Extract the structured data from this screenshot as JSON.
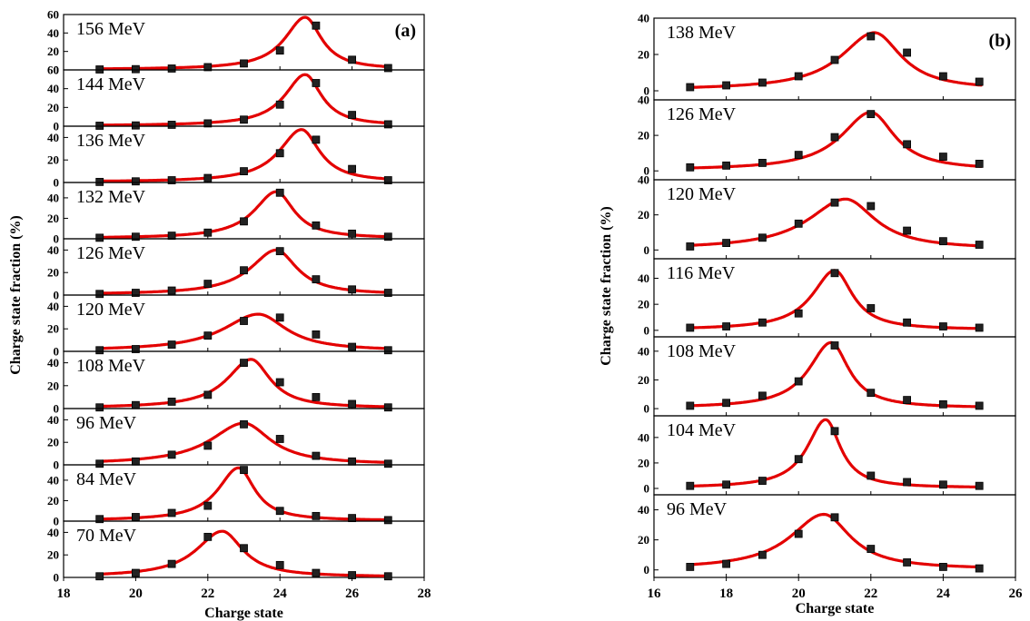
{
  "figure": {
    "panels": [
      {
        "id": "a",
        "tag": "(a)",
        "xlabel": "Charge state",
        "ylabel": "Charge state fraction (%)"
      },
      {
        "id": "b",
        "tag": "(b)",
        "xlabel": "Charge state",
        "ylabel": "Charge state fraction (%)"
      }
    ]
  },
  "colors": {
    "curve": "#e30000",
    "marker": "#222222",
    "axes": "#000000"
  },
  "chart_data": [
    {
      "type": "scatter",
      "panel": "(a)",
      "xlabel": "Charge state",
      "ylabel": "Charge state fraction (%)",
      "xlim": [
        18,
        28
      ],
      "x_ticks": [
        18,
        20,
        22,
        24,
        26,
        28
      ],
      "x": [
        19,
        20,
        21,
        22,
        23,
        24,
        25,
        26,
        27
      ],
      "fit": "red fitted curve per subplot",
      "subplots": [
        {
          "label": "156 MeV",
          "ylim": [
            0,
            60
          ],
          "yticks": [
            0,
            20,
            40,
            60
          ],
          "values": [
            0.5,
            0.8,
            1.5,
            3,
            7,
            21,
            48,
            11,
            2
          ],
          "peak_x": 24.7,
          "peak_y": 57,
          "width": 0.55
        },
        {
          "label": "144 MeV",
          "ylim": [
            0,
            60
          ],
          "yticks": [
            0,
            20,
            40,
            60
          ],
          "values": [
            0.5,
            0.8,
            1.5,
            3,
            7,
            23,
            46,
            12,
            2
          ],
          "peak_x": 24.7,
          "peak_y": 55,
          "width": 0.55
        },
        {
          "label": "136 MeV",
          "ylim": [
            0,
            50
          ],
          "yticks": [
            0,
            20,
            40
          ],
          "values": [
            0.5,
            1,
            2,
            4,
            10,
            26,
            38,
            12,
            2
          ],
          "peak_x": 24.6,
          "peak_y": 47,
          "width": 0.6
        },
        {
          "label": "132 MeV",
          "ylim": [
            0,
            55
          ],
          "yticks": [
            0,
            20,
            40
          ],
          "values": [
            1,
            2,
            3,
            6,
            17,
            45,
            13,
            5,
            2
          ],
          "peak_x": 23.9,
          "peak_y": 46,
          "width": 0.6
        },
        {
          "label": "126 MeV",
          "ylim": [
            0,
            50
          ],
          "yticks": [
            0,
            20,
            40
          ],
          "values": [
            1,
            2,
            4,
            10,
            22,
            39,
            14,
            5,
            2
          ],
          "peak_x": 23.9,
          "peak_y": 40,
          "width": 0.7
        },
        {
          "label": "120 MeV",
          "ylim": [
            0,
            50
          ],
          "yticks": [
            0,
            20,
            40
          ],
          "values": [
            1,
            2,
            6,
            14,
            27,
            30,
            15,
            4,
            1
          ],
          "peak_x": 23.4,
          "peak_y": 33,
          "width": 0.95
        },
        {
          "label": "108 MeV",
          "ylim": [
            0,
            50
          ],
          "yticks": [
            0,
            20,
            40
          ],
          "values": [
            1,
            3,
            6,
            12,
            40,
            23,
            10,
            4,
            1
          ],
          "peak_x": 23.2,
          "peak_y": 43,
          "width": 0.65
        },
        {
          "label": "96 MeV",
          "ylim": [
            0,
            50
          ],
          "yticks": [
            0,
            20,
            40
          ],
          "values": [
            1,
            3,
            9,
            17,
            36,
            23,
            8,
            3,
            1
          ],
          "peak_x": 23.0,
          "peak_y": 37,
          "width": 0.9
        },
        {
          "label": "84 MeV",
          "ylim": [
            0,
            55
          ],
          "yticks": [
            0,
            20,
            40
          ],
          "values": [
            2,
            4,
            8,
            15,
            50,
            10,
            5,
            3,
            1
          ],
          "peak_x": 22.85,
          "peak_y": 52,
          "width": 0.55
        },
        {
          "label": "70 MeV",
          "ylim": [
            0,
            50
          ],
          "yticks": [
            0,
            20,
            40
          ],
          "values": [
            1,
            4,
            12,
            36,
            26,
            11,
            4,
            2,
            1
          ],
          "peak_x": 22.4,
          "peak_y": 41,
          "width": 0.7
        }
      ]
    },
    {
      "type": "scatter",
      "panel": "(b)",
      "xlabel": "Charge state",
      "ylabel": "Charge state fraction (%)",
      "xlim": [
        16,
        26
      ],
      "x_ticks": [
        16,
        18,
        20,
        22,
        24,
        26
      ],
      "x": [
        17,
        18,
        19,
        20,
        21,
        22,
        23,
        24,
        25
      ],
      "fit": "red fitted curve per subplot",
      "subplots": [
        {
          "label": "138 MeV",
          "ylim": [
            -5,
            40
          ],
          "yticks": [
            0,
            20,
            40
          ],
          "values": [
            2,
            3,
            4.5,
            8,
            17,
            30,
            21,
            8,
            5
          ],
          "peak_x": 22.1,
          "peak_y": 32,
          "width": 0.9
        },
        {
          "label": "126 MeV",
          "ylim": [
            -5,
            40
          ],
          "yticks": [
            0,
            20,
            40
          ],
          "values": [
            2,
            3,
            4.5,
            9,
            19,
            32,
            15,
            8,
            4
          ],
          "peak_x": 22.0,
          "peak_y": 33,
          "width": 0.8
        },
        {
          "label": "120 MeV",
          "ylim": [
            -5,
            40
          ],
          "yticks": [
            0,
            20,
            40
          ],
          "values": [
            2,
            4,
            7,
            15,
            27,
            25,
            11,
            5,
            3
          ],
          "peak_x": 21.3,
          "peak_y": 29,
          "width": 1.0
        },
        {
          "label": "116 MeV",
          "ylim": [
            -5,
            55
          ],
          "yticks": [
            0,
            20,
            40
          ],
          "values": [
            2,
            3,
            6,
            13,
            44,
            17,
            6,
            3,
            2
          ],
          "peak_x": 21.0,
          "peak_y": 46,
          "width": 0.6
        },
        {
          "label": "108 MeV",
          "ylim": [
            -5,
            50
          ],
          "yticks": [
            0,
            20,
            40
          ],
          "values": [
            2,
            4,
            9,
            19,
            44,
            11,
            6,
            3,
            2
          ],
          "peak_x": 20.9,
          "peak_y": 46,
          "width": 0.6
        },
        {
          "label": "104 MeV",
          "ylim": [
            -5,
            57
          ],
          "yticks": [
            0,
            20,
            40
          ],
          "values": [
            2,
            3,
            6,
            23,
            45,
            10,
            5,
            3,
            2
          ],
          "peak_x": 20.75,
          "peak_y": 54,
          "width": 0.5
        },
        {
          "label": "96 MeV",
          "ylim": [
            -5,
            50
          ],
          "yticks": [
            0,
            20,
            40
          ],
          "values": [
            2,
            4,
            10,
            24,
            35,
            14,
            5,
            2,
            1
          ],
          "peak_x": 20.7,
          "peak_y": 37,
          "width": 0.9
        }
      ]
    }
  ]
}
